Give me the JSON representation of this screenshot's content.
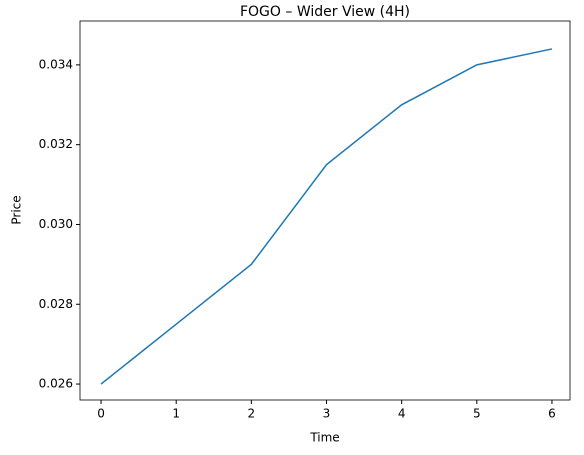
{
  "chart_data": {
    "type": "line",
    "title": "FOGO – Wider View (4H)",
    "xlabel": "Time",
    "ylabel": "Price",
    "x": [
      0,
      1,
      2,
      3,
      4,
      5,
      6
    ],
    "series": [
      {
        "name": "FOGO",
        "color": "#1f77b4",
        "values": [
          0.026,
          0.0275,
          0.029,
          0.0315,
          0.033,
          0.034,
          0.0344
        ]
      }
    ],
    "xlim": [
      -0.28,
      6.24
    ],
    "ylim": [
      0.0256,
      0.0351
    ],
    "xticks": [
      0,
      1,
      2,
      3,
      4,
      5,
      6
    ],
    "yticks": [
      0.026,
      0.028,
      {
        "value": 0.03,
        "label": "0.030"
      },
      0.032,
      0.034
    ]
  }
}
